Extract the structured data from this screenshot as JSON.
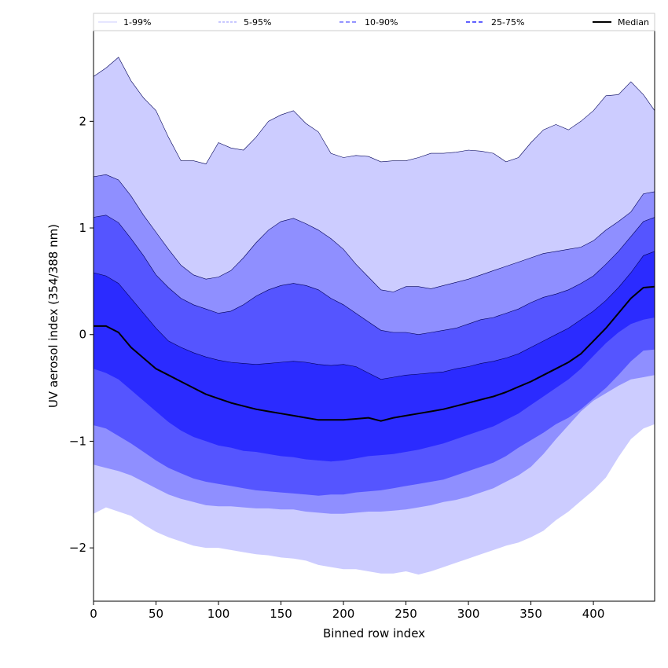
{
  "chart_data": {
    "type": "area",
    "xlabel": "Binned row index",
    "ylabel": "UV aerosol index (354/388 nm)",
    "xlim": [
      0,
      449
    ],
    "ylim": [
      -2.5,
      2.85
    ],
    "xticks": [
      0,
      50,
      100,
      150,
      200,
      250,
      300,
      350,
      400
    ],
    "yticks": [
      -2,
      -1,
      0,
      1,
      2
    ],
    "legend_placement": "top, above plot",
    "grid": false,
    "colors": {
      "band_1_99": "#ccccff",
      "band_5_95": "#8f8fff",
      "band_10_90": "#5555ff",
      "band_25_75": "#2b2bff",
      "median": "#000000",
      "edge": "#00005a"
    },
    "legend": [
      {
        "label": "1-99%",
        "style": "thin-light"
      },
      {
        "label": "5-95%",
        "style": "thin-dash"
      },
      {
        "label": "10-90%",
        "style": "dash"
      },
      {
        "label": "25-75%",
        "style": "dash-dark"
      },
      {
        "label": "Median",
        "style": "solid-black"
      }
    ],
    "x": [
      0,
      10,
      20,
      30,
      40,
      50,
      60,
      70,
      80,
      90,
      100,
      110,
      120,
      130,
      140,
      150,
      160,
      170,
      180,
      190,
      200,
      210,
      220,
      230,
      240,
      250,
      260,
      270,
      280,
      290,
      300,
      310,
      320,
      330,
      340,
      350,
      360,
      370,
      380,
      390,
      400,
      410,
      420,
      430,
      440,
      449
    ],
    "series": [
      {
        "name": "1-99%",
        "lower": [
          -1.68,
          -1.62,
          -1.66,
          -1.7,
          -1.78,
          -1.85,
          -1.9,
          -1.94,
          -1.98,
          -2.0,
          -2.0,
          -2.02,
          -2.04,
          -2.06,
          -2.07,
          -2.09,
          -2.1,
          -2.12,
          -2.16,
          -2.18,
          -2.2,
          -2.2,
          -2.22,
          -2.24,
          -2.24,
          -2.22,
          -2.25,
          -2.22,
          -2.18,
          -2.14,
          -2.1,
          -2.06,
          -2.02,
          -1.98,
          -1.95,
          -1.9,
          -1.84,
          -1.74,
          -1.66,
          -1.56,
          -1.46,
          -1.34,
          -1.15,
          -0.98,
          -0.88,
          -0.84
        ],
        "upper": [
          2.42,
          2.5,
          2.6,
          2.38,
          2.22,
          2.1,
          1.85,
          1.63,
          1.63,
          1.6,
          1.8,
          1.75,
          1.73,
          1.85,
          2.0,
          2.06,
          2.1,
          1.98,
          1.9,
          1.7,
          1.66,
          1.68,
          1.67,
          1.62,
          1.63,
          1.63,
          1.66,
          1.7,
          1.7,
          1.71,
          1.73,
          1.72,
          1.7,
          1.62,
          1.66,
          1.8,
          1.92,
          1.97,
          1.92,
          2.0,
          2.1,
          2.24,
          2.25,
          2.37,
          2.25,
          2.1
        ]
      },
      {
        "name": "5-95%",
        "lower": [
          -1.22,
          -1.25,
          -1.28,
          -1.32,
          -1.38,
          -1.44,
          -1.5,
          -1.54,
          -1.57,
          -1.6,
          -1.61,
          -1.61,
          -1.62,
          -1.63,
          -1.63,
          -1.64,
          -1.64,
          -1.66,
          -1.67,
          -1.68,
          -1.68,
          -1.67,
          -1.66,
          -1.66,
          -1.65,
          -1.64,
          -1.62,
          -1.6,
          -1.57,
          -1.55,
          -1.52,
          -1.48,
          -1.44,
          -1.38,
          -1.32,
          -1.24,
          -1.12,
          -0.98,
          -0.85,
          -0.72,
          -0.62,
          -0.55,
          -0.48,
          -0.42,
          -0.4,
          -0.38
        ],
        "upper": [
          1.48,
          1.5,
          1.45,
          1.3,
          1.12,
          0.96,
          0.8,
          0.65,
          0.56,
          0.52,
          0.54,
          0.6,
          0.72,
          0.86,
          0.98,
          1.06,
          1.09,
          1.04,
          0.98,
          0.9,
          0.8,
          0.66,
          0.54,
          0.42,
          0.4,
          0.45,
          0.45,
          0.43,
          0.46,
          0.49,
          0.52,
          0.56,
          0.6,
          0.64,
          0.68,
          0.72,
          0.76,
          0.78,
          0.8,
          0.82,
          0.88,
          0.98,
          1.06,
          1.15,
          1.32,
          1.34
        ]
      },
      {
        "name": "10-90%",
        "lower": [
          -0.85,
          -0.88,
          -0.95,
          -1.02,
          -1.1,
          -1.18,
          -1.25,
          -1.3,
          -1.35,
          -1.38,
          -1.4,
          -1.42,
          -1.44,
          -1.46,
          -1.47,
          -1.48,
          -1.49,
          -1.5,
          -1.51,
          -1.5,
          -1.5,
          -1.48,
          -1.47,
          -1.46,
          -1.44,
          -1.42,
          -1.4,
          -1.38,
          -1.36,
          -1.32,
          -1.28,
          -1.24,
          -1.2,
          -1.14,
          -1.06,
          -0.99,
          -0.92,
          -0.84,
          -0.78,
          -0.7,
          -0.6,
          -0.5,
          -0.38,
          -0.25,
          -0.15,
          -0.14
        ],
        "upper": [
          1.1,
          1.12,
          1.05,
          0.9,
          0.74,
          0.56,
          0.44,
          0.34,
          0.28,
          0.24,
          0.2,
          0.22,
          0.28,
          0.36,
          0.42,
          0.46,
          0.48,
          0.46,
          0.42,
          0.34,
          0.28,
          0.2,
          0.12,
          0.04,
          0.02,
          0.02,
          0.0,
          0.02,
          0.04,
          0.06,
          0.1,
          0.14,
          0.16,
          0.2,
          0.24,
          0.3,
          0.35,
          0.38,
          0.42,
          0.48,
          0.55,
          0.66,
          0.78,
          0.92,
          1.06,
          1.1
        ]
      },
      {
        "name": "25-75%",
        "lower": [
          -0.32,
          -0.36,
          -0.42,
          -0.52,
          -0.62,
          -0.72,
          -0.82,
          -0.9,
          -0.96,
          -1.0,
          -1.04,
          -1.06,
          -1.09,
          -1.1,
          -1.12,
          -1.14,
          -1.15,
          -1.17,
          -1.18,
          -1.19,
          -1.18,
          -1.16,
          -1.14,
          -1.13,
          -1.12,
          -1.1,
          -1.08,
          -1.05,
          -1.02,
          -0.98,
          -0.94,
          -0.9,
          -0.86,
          -0.8,
          -0.74,
          -0.66,
          -0.58,
          -0.5,
          -0.42,
          -0.32,
          -0.2,
          -0.08,
          0.02,
          0.1,
          0.14,
          0.16
        ],
        "upper": [
          0.58,
          0.55,
          0.48,
          0.34,
          0.2,
          0.06,
          -0.06,
          -0.12,
          -0.17,
          -0.21,
          -0.24,
          -0.26,
          -0.27,
          -0.28,
          -0.27,
          -0.26,
          -0.25,
          -0.26,
          -0.28,
          -0.29,
          -0.28,
          -0.3,
          -0.36,
          -0.42,
          -0.4,
          -0.38,
          -0.37,
          -0.36,
          -0.35,
          -0.32,
          -0.3,
          -0.27,
          -0.25,
          -0.22,
          -0.18,
          -0.12,
          -0.06,
          0.0,
          0.06,
          0.14,
          0.22,
          0.32,
          0.44,
          0.58,
          0.74,
          0.78
        ]
      },
      {
        "name": "Median",
        "values": [
          0.08,
          0.08,
          0.02,
          -0.12,
          -0.22,
          -0.32,
          -0.38,
          -0.44,
          -0.5,
          -0.56,
          -0.6,
          -0.64,
          -0.67,
          -0.7,
          -0.72,
          -0.74,
          -0.76,
          -0.78,
          -0.8,
          -0.8,
          -0.8,
          -0.79,
          -0.78,
          -0.81,
          -0.78,
          -0.76,
          -0.74,
          -0.72,
          -0.7,
          -0.67,
          -0.64,
          -0.61,
          -0.58,
          -0.54,
          -0.49,
          -0.44,
          -0.38,
          -0.32,
          -0.26,
          -0.18,
          -0.06,
          0.06,
          0.2,
          0.34,
          0.44,
          0.45
        ]
      }
    ]
  }
}
